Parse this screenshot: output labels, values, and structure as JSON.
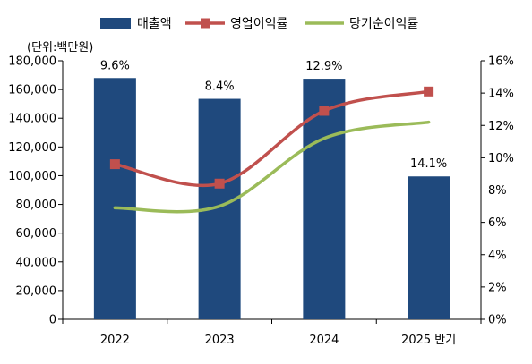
{
  "chart_data": {
    "type": "bar",
    "unit_label": "(단위:백만원)",
    "categories": [
      "2022",
      "2023",
      "2024",
      "2025 반기"
    ],
    "series": [
      {
        "name": "매출액",
        "type": "bar",
        "axis": "left",
        "color": "#1f497d",
        "values": [
          168000,
          153500,
          167500,
          99500
        ]
      },
      {
        "name": "영업이익률",
        "type": "line",
        "axis": "right",
        "color": "#c0504d",
        "marker": "square",
        "values": [
          9.6,
          8.4,
          12.9,
          14.1
        ]
      },
      {
        "name": "당기순이익률",
        "type": "line",
        "axis": "right",
        "color": "#9bbb59",
        "marker": "none",
        "values": [
          6.9,
          7.0,
          11.2,
          12.2
        ]
      }
    ],
    "data_labels": [
      "9.6%",
      "8.4%",
      "12.9%",
      "14.1%"
    ],
    "y_left": {
      "min": 0,
      "max": 180000,
      "step": 20000,
      "ticks": [
        "0",
        "20,000",
        "40,000",
        "60,000",
        "80,000",
        "100,000",
        "120,000",
        "140,000",
        "160,000",
        "180,000"
      ]
    },
    "y_right": {
      "min": 0,
      "max": 16,
      "step": 2,
      "ticks": [
        "0%",
        "2%",
        "4%",
        "6%",
        "8%",
        "10%",
        "12%",
        "14%",
        "16%"
      ]
    },
    "grid": false,
    "legend_position": "top"
  }
}
